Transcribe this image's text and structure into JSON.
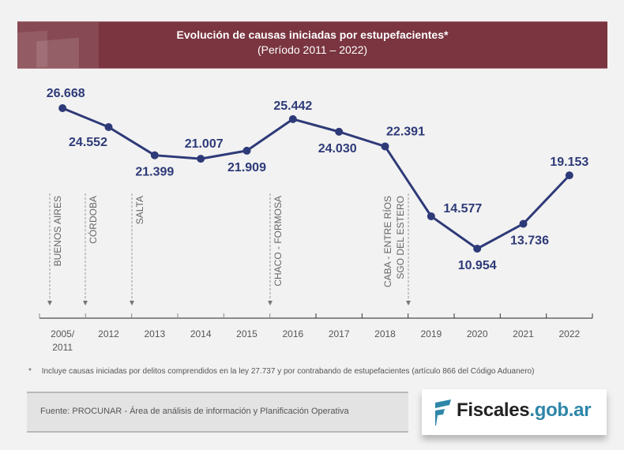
{
  "header": {
    "title": "Evolución de causas iniciadas por estupefacientes*",
    "subtitle": "(Período 2011 – 2022)"
  },
  "chart_data": {
    "type": "line",
    "title": "Evolución de causas iniciadas por estupefacientes*",
    "subtitle": "(Período 2011 – 2022)",
    "xlabel": "",
    "ylabel": "",
    "categories": [
      "2005/\n2011",
      "2012",
      "2013",
      "2014",
      "2015",
      "2016",
      "2017",
      "2018",
      "2019",
      "2020",
      "2021",
      "2022"
    ],
    "category_lines": [
      [
        "2005/",
        "2011"
      ],
      [
        "2012"
      ],
      [
        "2013"
      ],
      [
        "2014"
      ],
      [
        "2015"
      ],
      [
        "2016"
      ],
      [
        "2017"
      ],
      [
        "2018"
      ],
      [
        "2019"
      ],
      [
        "2020"
      ],
      [
        "2021"
      ],
      [
        "2022"
      ]
    ],
    "series": [
      {
        "name": "Causas iniciadas",
        "values": [
          26668,
          24552,
          21399,
          21007,
          21909,
          25442,
          24030,
          22391,
          14577,
          10954,
          13736,
          19153
        ],
        "labels": [
          "26.668",
          "24.552",
          "21.399",
          "21.007",
          "21.909",
          "25.442",
          "24.030",
          "22.391",
          "14.577",
          "10.954",
          "13.736",
          "19.153"
        ],
        "label_positions": [
          "above",
          "below-left",
          "below",
          "above",
          "below",
          "above",
          "below",
          "above-right",
          "right",
          "below",
          "below",
          "above"
        ]
      }
    ],
    "ylim": [
      10000,
      27000
    ],
    "grid": false,
    "legend": "none",
    "annotations": [
      {
        "boundary_before_index": 0,
        "lines": [
          "BUENOS AIRES"
        ]
      },
      {
        "boundary_before_index": 1,
        "lines": [
          "CÓRDOBA"
        ]
      },
      {
        "boundary_before_index": 2,
        "lines": [
          "SALTA"
        ]
      },
      {
        "boundary_before_index": 5,
        "lines": [
          "CHACO - FORMOSA"
        ]
      },
      {
        "boundary_before_index": 8,
        "lines": [
          "CABA - ENTRE RÍOS",
          "SGO DEL ESTERO"
        ]
      }
    ],
    "colors": {
      "line": "#2e3a78",
      "axis": "#8a8a8a",
      "annotation": "#666666"
    }
  },
  "footnote": {
    "marker": "*",
    "text": "Incluye causas iniciadas por delitos comprendidos en la ley 27.737 y por contrabando de estupefacientes (artículo 866 del Código Aduanero)"
  },
  "source": {
    "text": "Fuente: PROCUNAR - Área de análisis de información y Planificación Operativa"
  },
  "logo": {
    "name_part": "Fiscales",
    "domain_part": ".gob.ar",
    "colors": {
      "name": "#222222",
      "domain": "#2e86a8"
    }
  },
  "colors": {
    "banner": "#7a3540",
    "background": "#f2f2f2"
  }
}
